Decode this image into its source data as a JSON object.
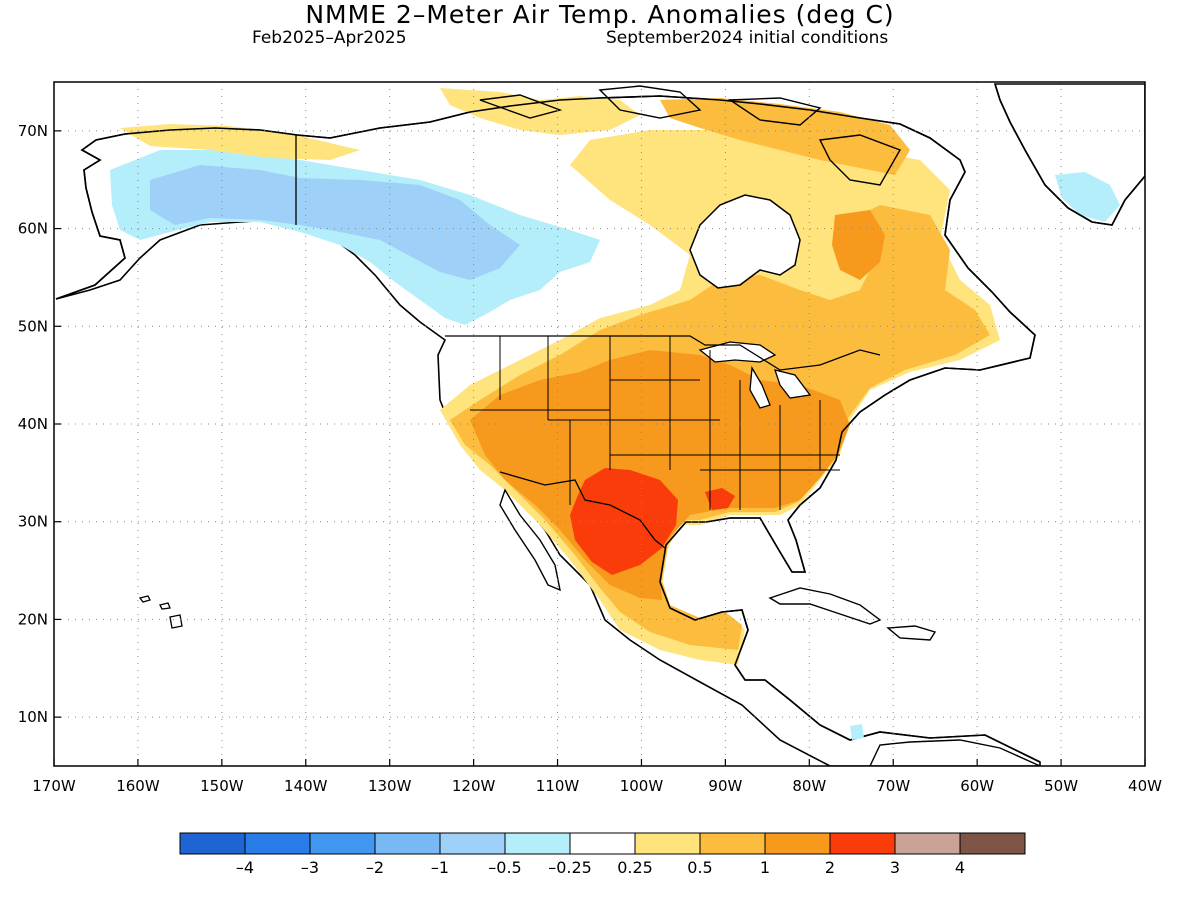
{
  "header": {
    "title": "NMME 2–Meter Air Temp. Anomalies (deg C)",
    "period": "Feb2025–Apr2025",
    "init": "September2024 initial conditions"
  },
  "map": {
    "lon_range": [
      -170,
      -40
    ],
    "lat_range": [
      5,
      75
    ],
    "lat_labels": [
      {
        "lat": 70,
        "label": "70N"
      },
      {
        "lat": 60,
        "label": "60N"
      },
      {
        "lat": 50,
        "label": "50N"
      },
      {
        "lat": 40,
        "label": "40N"
      },
      {
        "lat": 30,
        "label": "30N"
      },
      {
        "lat": 20,
        "label": "20N"
      },
      {
        "lat": 10,
        "label": "10N"
      }
    ],
    "lon_labels": [
      {
        "lon": -170,
        "label": "170W"
      },
      {
        "lon": -160,
        "label": "160W"
      },
      {
        "lon": -150,
        "label": "150W"
      },
      {
        "lon": -140,
        "label": "140W"
      },
      {
        "lon": -130,
        "label": "130W"
      },
      {
        "lon": -120,
        "label": "120W"
      },
      {
        "lon": -110,
        "label": "110W"
      },
      {
        "lon": -100,
        "label": "100W"
      },
      {
        "lon": -90,
        "label": "90W"
      },
      {
        "lon": -80,
        "label": "80W"
      },
      {
        "lon": -70,
        "label": "70W"
      },
      {
        "lon": -60,
        "label": "60W"
      },
      {
        "lon": -50,
        "label": "50W"
      },
      {
        "lon": -40,
        "label": "40W"
      }
    ],
    "grid": true
  },
  "colorbar": {
    "colors": [
      "#1e64d2",
      "#2a7de8",
      "#4196f0",
      "#78b9f5",
      "#9fd0f7",
      "#b3eefa",
      "#ffffff",
      "#ffe37d",
      "#fcbc3e",
      "#f7991c",
      "#fa3c0a",
      "#c9a298",
      "#7d5446"
    ],
    "labels": [
      "–4",
      "–3",
      "–2",
      "–1",
      "–0.5",
      "–0.25",
      "0.25",
      "0.5",
      "1",
      "2",
      "3",
      "4"
    ]
  },
  "palette": {
    "neg_light": "#b3eefa",
    "neg_mid": "#9fd0f7",
    "pos_light": "#ffe37d",
    "pos_mid": "#fcbc3e",
    "pos_high": "#f7991c",
    "pos_max": "#fa3c0a"
  }
}
